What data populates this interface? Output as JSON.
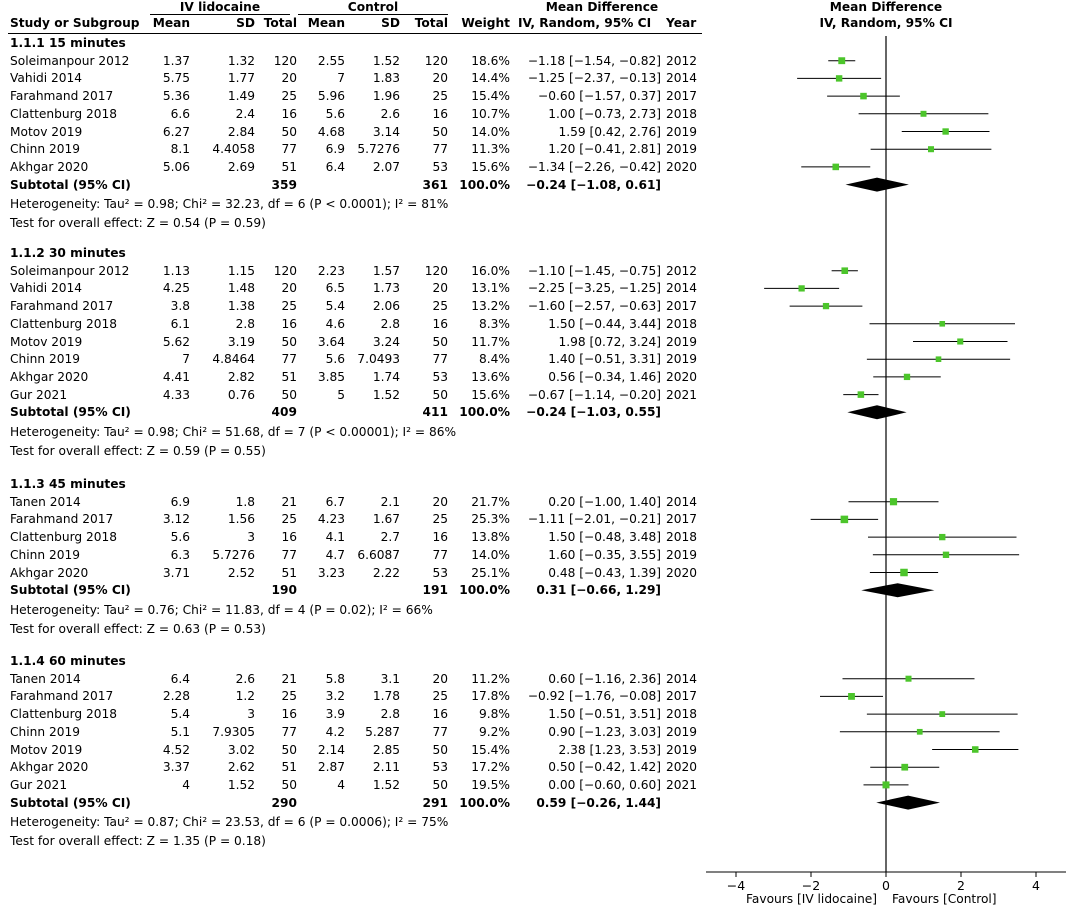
{
  "header": {
    "group1": "IV lidocaine",
    "group2": "Control",
    "md_title_l1": "Mean Difference",
    "md_title_l2": "IV, Random, 95% CI",
    "plot_title_l1": "Mean Difference",
    "plot_title_l2": "IV, Random, 95% CI",
    "cols": {
      "study": "Study or Subgroup",
      "mean1": "Mean",
      "sd1": "SD",
      "total1": "Total",
      "mean2": "Mean",
      "sd2": "SD",
      "total2": "Total",
      "weight": "Weight",
      "ci": "IV, Random, 95% CI",
      "year": "Year"
    }
  },
  "subgroups": [
    {
      "title": "1.1.1 15 minutes",
      "studies": [
        {
          "name": "Soleimanpour 2012",
          "m1": "1.37",
          "sd1": "1.32",
          "n1": "120",
          "m2": "2.55",
          "sd2": "1.52",
          "n2": "120",
          "w": "18.6%",
          "ci": "−1.18 [−1.54, −0.82]",
          "year": "2012",
          "md": -1.18,
          "lo": -1.54,
          "hi": -0.82,
          "wt": 18.6
        },
        {
          "name": "Vahidi 2014",
          "m1": "5.75",
          "sd1": "1.77",
          "n1": "20",
          "m2": "7",
          "sd2": "1.83",
          "n2": "20",
          "w": "14.4%",
          "ci": "−1.25 [−2.37, −0.13]",
          "year": "2014",
          "md": -1.25,
          "lo": -2.37,
          "hi": -0.13,
          "wt": 14.4
        },
        {
          "name": "Farahmand 2017",
          "m1": "5.36",
          "sd1": "1.49",
          "n1": "25",
          "m2": "5.96",
          "sd2": "1.96",
          "n2": "25",
          "w": "15.4%",
          "ci": "−0.60 [−1.57, 0.37]",
          "year": "2017",
          "md": -0.6,
          "lo": -1.57,
          "hi": 0.37,
          "wt": 15.4
        },
        {
          "name": "Clattenburg 2018",
          "m1": "6.6",
          "sd1": "2.4",
          "n1": "16",
          "m2": "5.6",
          "sd2": "2.6",
          "n2": "16",
          "w": "10.7%",
          "ci": "1.00 [−0.73, 2.73]",
          "year": "2018",
          "md": 1.0,
          "lo": -0.73,
          "hi": 2.73,
          "wt": 10.7
        },
        {
          "name": "Motov 2019",
          "m1": "6.27",
          "sd1": "2.84",
          "n1": "50",
          "m2": "4.68",
          "sd2": "3.14",
          "n2": "50",
          "w": "14.0%",
          "ci": "1.59 [0.42, 2.76]",
          "year": "2019",
          "md": 1.59,
          "lo": 0.42,
          "hi": 2.76,
          "wt": 14.0
        },
        {
          "name": "Chinn 2019",
          "m1": "8.1",
          "sd1": "4.4058",
          "n1": "77",
          "m2": "6.9",
          "sd2": "5.7276",
          "n2": "77",
          "w": "11.3%",
          "ci": "1.20 [−0.41, 2.81]",
          "year": "2019",
          "md": 1.2,
          "lo": -0.41,
          "hi": 2.81,
          "wt": 11.3
        },
        {
          "name": "Akhgar 2020",
          "m1": "5.06",
          "sd1": "2.69",
          "n1": "51",
          "m2": "6.4",
          "sd2": "2.07",
          "n2": "53",
          "w": "15.6%",
          "ci": "−1.34 [−2.26, −0.42]",
          "year": "2020",
          "md": -1.34,
          "lo": -2.26,
          "hi": -0.42,
          "wt": 15.6
        }
      ],
      "subtotal": {
        "label": "Subtotal (95% CI)",
        "n1": "359",
        "n2": "361",
        "w": "100.0%",
        "ci": "−0.24 [−1.08, 0.61]",
        "md": -0.24,
        "lo": -1.08,
        "hi": 0.61
      },
      "heterogeneity": "Heterogeneity: Tau² = 0.98; Chi² = 32.23, df = 6 (P < 0.0001); I² = 81%",
      "overall": "Test for overall effect: Z = 0.54 (P = 0.59)"
    },
    {
      "title": "1.1.2 30 minutes",
      "studies": [
        {
          "name": "Soleimanpour 2012",
          "m1": "1.13",
          "sd1": "1.15",
          "n1": "120",
          "m2": "2.23",
          "sd2": "1.57",
          "n2": "120",
          "w": "16.0%",
          "ci": "−1.10 [−1.45, −0.75]",
          "year": "2012",
          "md": -1.1,
          "lo": -1.45,
          "hi": -0.75,
          "wt": 16.0
        },
        {
          "name": "Vahidi 2014",
          "m1": "4.25",
          "sd1": "1.48",
          "n1": "20",
          "m2": "6.5",
          "sd2": "1.73",
          "n2": "20",
          "w": "13.1%",
          "ci": "−2.25 [−3.25, −1.25]",
          "year": "2014",
          "md": -2.25,
          "lo": -3.25,
          "hi": -1.25,
          "wt": 13.1
        },
        {
          "name": "Farahmand 2017",
          "m1": "3.8",
          "sd1": "1.38",
          "n1": "25",
          "m2": "5.4",
          "sd2": "2.06",
          "n2": "25",
          "w": "13.2%",
          "ci": "−1.60 [−2.57, −0.63]",
          "year": "2017",
          "md": -1.6,
          "lo": -2.57,
          "hi": -0.63,
          "wt": 13.2
        },
        {
          "name": "Clattenburg 2018",
          "m1": "6.1",
          "sd1": "2.8",
          "n1": "16",
          "m2": "4.6",
          "sd2": "2.8",
          "n2": "16",
          "w": "8.3%",
          "ci": "1.50 [−0.44, 3.44]",
          "year": "2018",
          "md": 1.5,
          "lo": -0.44,
          "hi": 3.44,
          "wt": 8.3
        },
        {
          "name": "Motov 2019",
          "m1": "5.62",
          "sd1": "3.19",
          "n1": "50",
          "m2": "3.64",
          "sd2": "3.24",
          "n2": "50",
          "w": "11.7%",
          "ci": "1.98 [0.72, 3.24]",
          "year": "2019",
          "md": 1.98,
          "lo": 0.72,
          "hi": 3.24,
          "wt": 11.7
        },
        {
          "name": "Chinn 2019",
          "m1": "7",
          "sd1": "4.8464",
          "n1": "77",
          "m2": "5.6",
          "sd2": "7.0493",
          "n2": "77",
          "w": "8.4%",
          "ci": "1.40 [−0.51, 3.31]",
          "year": "2019",
          "md": 1.4,
          "lo": -0.51,
          "hi": 3.31,
          "wt": 8.4
        },
        {
          "name": "Akhgar 2020",
          "m1": "4.41",
          "sd1": "2.82",
          "n1": "51",
          "m2": "3.85",
          "sd2": "1.74",
          "n2": "53",
          "w": "13.6%",
          "ci": "0.56 [−0.34, 1.46]",
          "year": "2020",
          "md": 0.56,
          "lo": -0.34,
          "hi": 1.46,
          "wt": 13.6
        },
        {
          "name": "Gur 2021",
          "m1": "4.33",
          "sd1": "0.76",
          "n1": "50",
          "m2": "5",
          "sd2": "1.52",
          "n2": "50",
          "w": "15.6%",
          "ci": "−0.67 [−1.14, −0.20]",
          "year": "2021",
          "md": -0.67,
          "lo": -1.14,
          "hi": -0.2,
          "wt": 15.6
        }
      ],
      "subtotal": {
        "label": "Subtotal (95% CI)",
        "n1": "409",
        "n2": "411",
        "w": "100.0%",
        "ci": "−0.24 [−1.03, 0.55]",
        "md": -0.24,
        "lo": -1.03,
        "hi": 0.55
      },
      "heterogeneity": "Heterogeneity: Tau² = 0.98; Chi² = 51.68, df = 7 (P < 0.00001); I² = 86%",
      "overall": "Test for overall effect: Z = 0.59 (P = 0.55)"
    },
    {
      "title": "1.1.3 45 minutes",
      "studies": [
        {
          "name": "Tanen 2014",
          "m1": "6.9",
          "sd1": "1.8",
          "n1": "21",
          "m2": "6.7",
          "sd2": "2.1",
          "n2": "20",
          "w": "21.7%",
          "ci": "0.20 [−1.00, 1.40]",
          "year": "2014",
          "md": 0.2,
          "lo": -1.0,
          "hi": 1.4,
          "wt": 21.7
        },
        {
          "name": "Farahmand 2017",
          "m1": "3.12",
          "sd1": "1.56",
          "n1": "25",
          "m2": "4.23",
          "sd2": "1.67",
          "n2": "25",
          "w": "25.3%",
          "ci": "−1.11 [−2.01, −0.21]",
          "year": "2017",
          "md": -1.11,
          "lo": -2.01,
          "hi": -0.21,
          "wt": 25.3
        },
        {
          "name": "Clattenburg 2018",
          "m1": "5.6",
          "sd1": "3",
          "n1": "16",
          "m2": "4.1",
          "sd2": "2.7",
          "n2": "16",
          "w": "13.8%",
          "ci": "1.50 [−0.48, 3.48]",
          "year": "2018",
          "md": 1.5,
          "lo": -0.48,
          "hi": 3.48,
          "wt": 13.8
        },
        {
          "name": "Chinn 2019",
          "m1": "6.3",
          "sd1": "5.7276",
          "n1": "77",
          "m2": "4.7",
          "sd2": "6.6087",
          "n2": "77",
          "w": "14.0%",
          "ci": "1.60 [−0.35, 3.55]",
          "year": "2019",
          "md": 1.6,
          "lo": -0.35,
          "hi": 3.55,
          "wt": 14.0
        },
        {
          "name": "Akhgar 2020",
          "m1": "3.71",
          "sd1": "2.52",
          "n1": "51",
          "m2": "3.23",
          "sd2": "2.22",
          "n2": "53",
          "w": "25.1%",
          "ci": "0.48 [−0.43, 1.39]",
          "year": "2020",
          "md": 0.48,
          "lo": -0.43,
          "hi": 1.39,
          "wt": 25.1
        }
      ],
      "subtotal": {
        "label": "Subtotal (95% CI)",
        "n1": "190",
        "n2": "191",
        "w": "100.0%",
        "ci": "0.31 [−0.66, 1.29]",
        "md": 0.31,
        "lo": -0.66,
        "hi": 1.29
      },
      "heterogeneity": "Heterogeneity: Tau² = 0.76; Chi² = 11.83, df = 4 (P = 0.02); I² = 66%",
      "overall": "Test for overall effect: Z = 0.63 (P = 0.53)"
    },
    {
      "title": "1.1.4 60 minutes",
      "studies": [
        {
          "name": "Tanen 2014",
          "m1": "6.4",
          "sd1": "2.6",
          "n1": "21",
          "m2": "5.8",
          "sd2": "3.1",
          "n2": "20",
          "w": "11.2%",
          "ci": "0.60 [−1.16, 2.36]",
          "year": "2014",
          "md": 0.6,
          "lo": -1.16,
          "hi": 2.36,
          "wt": 11.2
        },
        {
          "name": "Farahmand 2017",
          "m1": "2.28",
          "sd1": "1.2",
          "n1": "25",
          "m2": "3.2",
          "sd2": "1.78",
          "n2": "25",
          "w": "17.8%",
          "ci": "−0.92 [−1.76, −0.08]",
          "year": "2017",
          "md": -0.92,
          "lo": -1.76,
          "hi": -0.08,
          "wt": 17.8
        },
        {
          "name": "Clattenburg 2018",
          "m1": "5.4",
          "sd1": "3",
          "n1": "16",
          "m2": "3.9",
          "sd2": "2.8",
          "n2": "16",
          "w": "9.8%",
          "ci": "1.50 [−0.51, 3.51]",
          "year": "2018",
          "md": 1.5,
          "lo": -0.51,
          "hi": 3.51,
          "wt": 9.8
        },
        {
          "name": "Chinn 2019",
          "m1": "5.1",
          "sd1": "7.9305",
          "n1": "77",
          "m2": "4.2",
          "sd2": "5.287",
          "n2": "77",
          "w": "9.2%",
          "ci": "0.90 [−1.23, 3.03]",
          "year": "2019",
          "md": 0.9,
          "lo": -1.23,
          "hi": 3.03,
          "wt": 9.2
        },
        {
          "name": "Motov 2019",
          "m1": "4.52",
          "sd1": "3.02",
          "n1": "50",
          "m2": "2.14",
          "sd2": "2.85",
          "n2": "50",
          "w": "15.4%",
          "ci": "2.38 [1.23, 3.53]",
          "year": "2019",
          "md": 2.38,
          "lo": 1.23,
          "hi": 3.53,
          "wt": 15.4
        },
        {
          "name": "Akhgar 2020",
          "m1": "3.37",
          "sd1": "2.62",
          "n1": "51",
          "m2": "2.87",
          "sd2": "2.11",
          "n2": "53",
          "w": "17.2%",
          "ci": "0.50 [−0.42, 1.42]",
          "year": "2020",
          "md": 0.5,
          "lo": -0.42,
          "hi": 1.42,
          "wt": 17.2
        },
        {
          "name": "Gur 2021",
          "m1": "4",
          "sd1": "1.52",
          "n1": "50",
          "m2": "4",
          "sd2": "1.52",
          "n2": "50",
          "w": "19.5%",
          "ci": "0.00 [−0.60, 0.60]",
          "year": "2021",
          "md": 0.0,
          "lo": -0.6,
          "hi": 0.6,
          "wt": 19.5
        }
      ],
      "subtotal": {
        "label": "Subtotal (95% CI)",
        "n1": "290",
        "n2": "291",
        "w": "100.0%",
        "ci": "0.59 [−0.26, 1.44]",
        "md": 0.59,
        "lo": -0.26,
        "hi": 1.44
      },
      "heterogeneity": "Heterogeneity: Tau² = 0.87; Chi² = 23.53, df = 6 (P = 0.0006); I² = 75%",
      "overall": "Test for overall effect: Z = 1.35 (P = 0.18)"
    }
  ],
  "axis": {
    "ticks": [
      -4,
      -2,
      0,
      2,
      4
    ],
    "tick_labels": [
      "−4",
      "−2",
      "0",
      "2",
      "4"
    ],
    "favours_left": "Favours [IV lidocaine]",
    "favours_right": "Favours [Control]"
  },
  "colors": {
    "marker": "#4cc52b",
    "diamond": "#000000",
    "line": "#000000"
  },
  "chart_data": {
    "type": "forest",
    "title": "Mean Difference IV, Random, 95% CI",
    "xlim": [
      -4,
      4
    ],
    "xticks": [
      -4,
      -2,
      0,
      2,
      4
    ],
    "xlabel_left": "Favours [IV lidocaine]",
    "xlabel_right": "Favours [Control]"
  }
}
